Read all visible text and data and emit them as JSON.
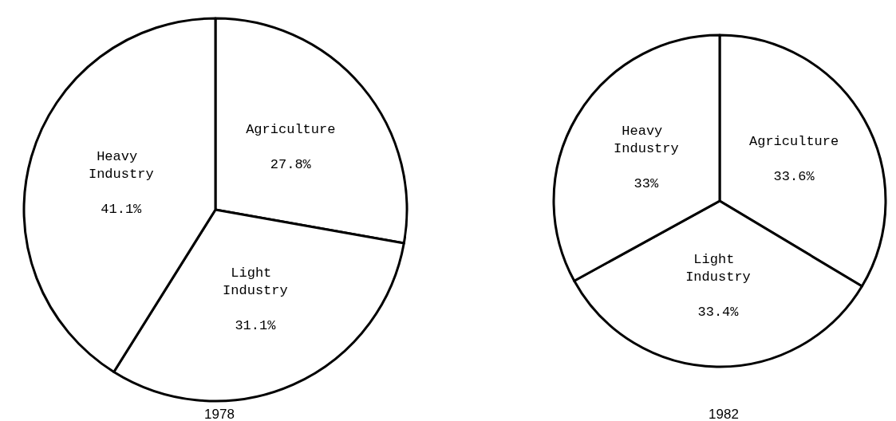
{
  "chart_data": [
    {
      "type": "pie",
      "title": "1978",
      "categories": [
        "Agriculture",
        "Light Industry",
        "Heavy Industry"
      ],
      "values": [
        27.8,
        31.1,
        41.1
      ],
      "colors": [
        "#ffffff",
        "#ffffff",
        "#ffffff"
      ],
      "value_labels": [
        "27.8%",
        "31.1%",
        "41.1%"
      ],
      "legend": false
    },
    {
      "type": "pie",
      "title": "1982",
      "categories": [
        "Agriculture",
        "Light Industry",
        "Heavy Industry"
      ],
      "values": [
        33.6,
        33.4,
        33
      ],
      "colors": [
        "#ffffff",
        "#ffffff",
        "#ffffff"
      ],
      "value_labels": [
        "33.6%",
        "33.4%",
        "33%"
      ],
      "legend": false
    }
  ]
}
